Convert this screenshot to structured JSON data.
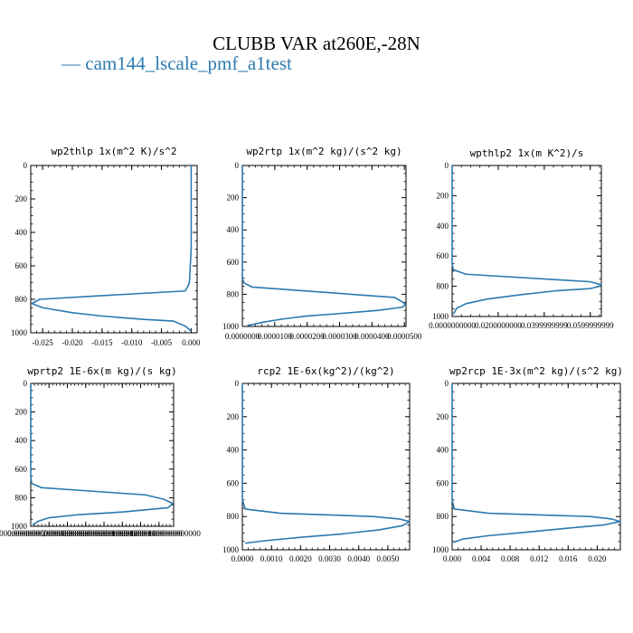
{
  "figure": {
    "title": "CLUBB VAR at260E,-28N",
    "legend": [
      {
        "name": "cam144_lscale_pmf_a1test",
        "color": "#2a7ab0"
      }
    ]
  },
  "chart_data": [
    {
      "type": "line",
      "title": "wp2thlp  1x(m^2 K)/s^2",
      "xlim": [
        -0.027,
        0.001
      ],
      "ylim": [
        0,
        1000
      ],
      "y_inverted": true,
      "xticks": [
        -0.025,
        -0.02,
        -0.015,
        -0.01,
        -0.005,
        0.0
      ],
      "xtick_labels": [
        "-0.025",
        "-0.020",
        "-0.015",
        "-0.010",
        "-0.005",
        "0.000"
      ],
      "yticks": [
        0,
        200,
        400,
        600,
        800,
        1000
      ],
      "ytick_labels": [
        "0",
        "200",
        "400",
        "600",
        "800",
        "1000"
      ],
      "series": [
        {
          "color": "#2a7ab0",
          "x": [
            0.0,
            0.0,
            -0.0003,
            -0.0006,
            -0.001,
            -0.016,
            -0.0255,
            -0.0268,
            -0.025,
            -0.02,
            -0.015,
            -0.008,
            -0.003,
            -0.001,
            0.0
          ],
          "y": [
            0,
            500,
            700,
            725,
            750,
            780,
            800,
            825,
            850,
            880,
            900,
            920,
            930,
            960,
            990
          ]
        }
      ]
    },
    {
      "type": "line",
      "title": "wp2rtp  1x(m^2 kg)/(s^2 kg)",
      "xlim": [
        0.0,
        5.05e-05
      ],
      "ylim": [
        0,
        1000
      ],
      "y_inverted": true,
      "xticks": [
        0.0,
        1e-05,
        2e-05,
        3e-05,
        4e-05,
        5e-05
      ],
      "xtick_labels": [
        "0.0000000",
        "0.0000100",
        "0.0000200",
        "0.0000300",
        "0.0000400",
        "0.0000500"
      ],
      "yticks": [
        0,
        200,
        400,
        600,
        800,
        1000
      ],
      "ytick_labels": [
        "0",
        "200",
        "400",
        "600",
        "800",
        "1000"
      ],
      "series": [
        {
          "color": "#2a7ab0",
          "x": [
            0.0,
            0.0,
            5e-07,
            3e-06,
            4.7e-05,
            5.03e-05,
            4.95e-05,
            4.2e-05,
            3e-05,
            2e-05,
            1.2e-05,
            6e-06,
            1.5e-06
          ],
          "y": [
            0,
            700,
            730,
            755,
            820,
            860,
            880,
            900,
            920,
            935,
            955,
            975,
            995
          ]
        }
      ]
    },
    {
      "type": "line",
      "title": "wpthlp2  1x(m K^2)/s",
      "xlim": [
        0.0,
        0.0648
      ],
      "ylim": [
        0,
        1000
      ],
      "y_inverted": true,
      "xticks": [
        0.0,
        0.02,
        0.04,
        0.06
      ],
      "xtick_labels": [
        "0.0000000000",
        "0.0200000000",
        "0.0399999999",
        "0.0599999999"
      ],
      "yticks": [
        0,
        200,
        400,
        600,
        800,
        1000
      ],
      "ytick_labels": [
        "0",
        "200",
        "400",
        "600",
        "800",
        "1000"
      ],
      "series": [
        {
          "color": "#2a7ab0",
          "x": [
            0.0,
            0.0,
            0.0005,
            0.006,
            0.06,
            0.0648,
            0.064,
            0.06,
            0.045,
            0.03,
            0.015,
            0.006,
            0.002,
            0.0005
          ],
          "y": [
            0,
            650,
            690,
            720,
            770,
            790,
            800,
            815,
            830,
            855,
            885,
            915,
            945,
            985
          ]
        }
      ]
    },
    {
      "type": "line",
      "title": "wprtp2  1E-6x(m kg)/(s kg)",
      "xlim": [
        0.0,
        1.56e-07
      ],
      "ylim": [
        0,
        1000
      ],
      "y_inverted": true,
      "xticks": [
        0.0,
        2e-08,
        4e-08,
        6e-08,
        8e-08,
        1e-07,
        1.2e-07,
        1.4e-07
      ],
      "xtick_labels": [
        "0.0000000000000000000",
        "0.0000000200000000000",
        "0.0000000400000000000",
        "0.0000000600000000000",
        "0.0000000800000000000",
        "0.0000001000000000000",
        "0.0000001200000000000",
        "0.0000001400000000000"
      ],
      "yticks": [
        0,
        200,
        400,
        600,
        800,
        1000
      ],
      "ytick_labels": [
        "0",
        "200",
        "400",
        "600",
        "800",
        "1000"
      ],
      "series": [
        {
          "color": "#2a7ab0",
          "x": [
            0.0,
            0.0,
            1e-09,
            1.2e-08,
            1.25e-07,
            1.45e-07,
            1.55e-07,
            1.5e-07,
            1e-07,
            5e-08,
            2e-08,
            8e-09,
            2e-09
          ],
          "y": [
            0,
            650,
            700,
            730,
            780,
            810,
            840,
            870,
            900,
            920,
            940,
            965,
            990
          ]
        }
      ]
    },
    {
      "type": "line",
      "title": "rcp2  1E-6x(kg^2)/(kg^2)",
      "xlim": [
        0.0,
        0.00575
      ],
      "ylim": [
        0,
        1000
      ],
      "y_inverted": true,
      "xticks": [
        0.0,
        0.001,
        0.002,
        0.003,
        0.004,
        0.005
      ],
      "xtick_labels": [
        "0.0000",
        "0.0010",
        "0.0020",
        "0.0030",
        "0.0040",
        "0.0050"
      ],
      "yticks": [
        0,
        200,
        400,
        600,
        800,
        1000
      ],
      "ytick_labels": [
        "0",
        "200",
        "400",
        "600",
        "800",
        "1000"
      ],
      "series": [
        {
          "color": "#2a7ab0",
          "x": [
            0.0,
            0.0,
            0.0001,
            0.0013,
            0.0045,
            0.0054,
            0.00575,
            0.0055,
            0.0047,
            0.0034,
            0.002,
            0.0008,
            0.0001
          ],
          "y": [
            0,
            700,
            755,
            780,
            800,
            815,
            830,
            855,
            880,
            905,
            925,
            945,
            960
          ]
        }
      ]
    },
    {
      "type": "line",
      "title": "wp2rcp  1E-3x(m^2 kg)/(s^2 kg)",
      "xlim": [
        0.0,
        0.0232
      ],
      "ylim": [
        0,
        1000
      ],
      "y_inverted": true,
      "xticks": [
        0.0,
        0.004,
        0.008,
        0.012,
        0.016,
        0.02
      ],
      "xtick_labels": [
        "0.000",
        "0.004",
        "0.008",
        "0.012",
        "0.016",
        "0.020"
      ],
      "yticks": [
        0,
        200,
        400,
        600,
        800,
        1000
      ],
      "ytick_labels": [
        "0",
        "200",
        "400",
        "600",
        "800",
        "1000"
      ],
      "series": [
        {
          "color": "#2a7ab0",
          "x": [
            0.0,
            0.0,
            0.0003,
            0.005,
            0.019,
            0.022,
            0.0232,
            0.021,
            0.016,
            0.01,
            0.005,
            0.0015,
            0.0002
          ],
          "y": [
            0,
            700,
            755,
            780,
            800,
            815,
            830,
            850,
            870,
            895,
            915,
            935,
            955
          ]
        }
      ]
    }
  ]
}
